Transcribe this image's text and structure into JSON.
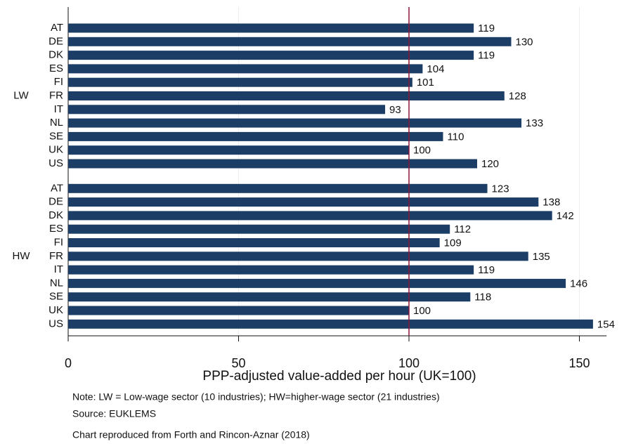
{
  "chart_data": {
    "type": "bar",
    "orientation": "horizontal",
    "xlabel": "PPP-adjusted value-added per hour (UK=100)",
    "groups": [
      {
        "name": "LW",
        "categories": [
          "AT",
          "DE",
          "DK",
          "ES",
          "FI",
          "FR",
          "IT",
          "NL",
          "SE",
          "UK",
          "US"
        ],
        "values": [
          119,
          130,
          119,
          104,
          101,
          128,
          93,
          133,
          110,
          100,
          120
        ]
      },
      {
        "name": "HW",
        "categories": [
          "AT",
          "DE",
          "DK",
          "ES",
          "FI",
          "FR",
          "IT",
          "NL",
          "SE",
          "UK",
          "US"
        ],
        "values": [
          123,
          138,
          142,
          112,
          109,
          135,
          119,
          146,
          118,
          100,
          154
        ]
      }
    ],
    "color": "#1b3d66",
    "reference_line": 100,
    "reference_color": "#8b1538",
    "xlim": [
      0,
      158
    ],
    "xticks": [
      0,
      50,
      100,
      150
    ],
    "grid": true,
    "notes": [
      "Note: LW = Low-wage sector (10 industries); HW=higher-wage sector (21 industries)",
      "Source: EUKLEMS",
      "Chart reproduced from Forth and Rincon-Aznar (2018)"
    ]
  }
}
